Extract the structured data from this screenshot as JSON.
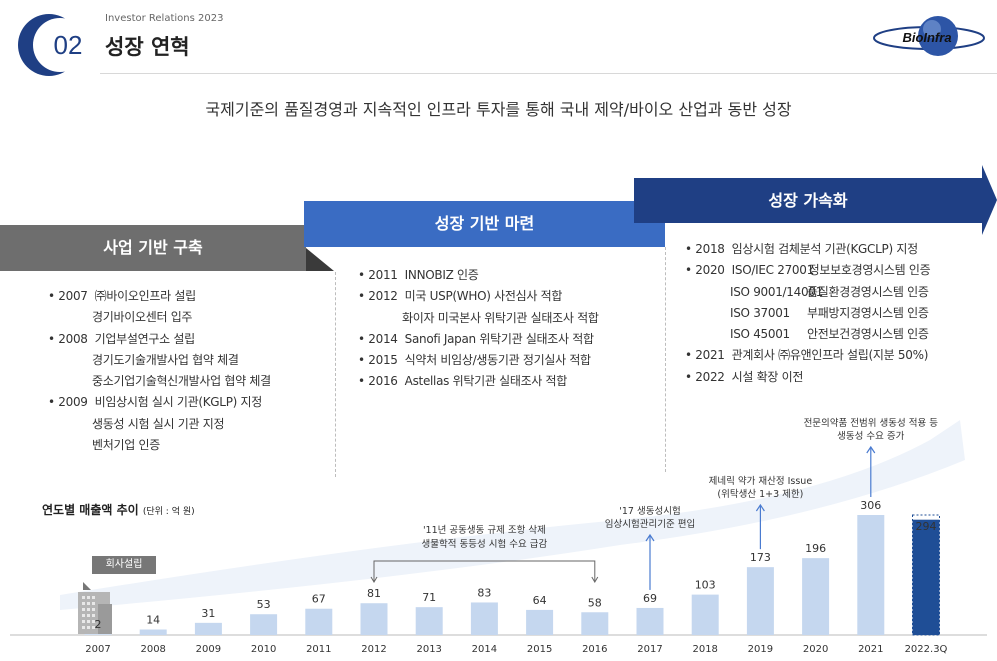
{
  "header": {
    "number": "02",
    "eyebrow": "Investor Relations 2023",
    "title": "성장 연혁",
    "logo": "BioInfra"
  },
  "subtitle": "국제기준의 품질경영과 지속적인 인프라 투자를 통해 국내 제약/바이오 산업과 동반 성장",
  "phases": [
    {
      "title": "사업 기반 구축",
      "items": [
        {
          "year": "• 2007",
          "lines": [
            "㈜바이오인프라 설립",
            "경기바이오센터 입주"
          ]
        },
        {
          "year": "• 2008",
          "lines": [
            "기업부설연구소 설립",
            "경기도기술개발사업 협약 체결",
            "중소기업기술혁신개발사업 협약 체결"
          ]
        },
        {
          "year": "• 2009",
          "lines": [
            "비임상시험 실시 기관(KGLP) 지정",
            "생동성 시험 실시 기관 지정",
            "벤처기업 인증"
          ]
        }
      ]
    },
    {
      "title": "성장 기반 마련",
      "items": [
        {
          "year": "• 2011",
          "lines": [
            "INNOBIZ 인증"
          ]
        },
        {
          "year": "• 2012",
          "lines": [
            "미국 USP(WHO) 사전심사 적합",
            "화이자 미국본사 위탁기관 실태조사 적합"
          ]
        },
        {
          "year": "• 2014",
          "lines": [
            "Sanofi Japan 위탁기관 실태조사 적합"
          ]
        },
        {
          "year": "• 2015",
          "lines": [
            "식약처 비임상/생동기관 정기실사 적합"
          ]
        },
        {
          "year": "• 2016",
          "lines": [
            "Astellas 위탁기관 실태조사 적합"
          ]
        }
      ]
    },
    {
      "title": "성장 가속화",
      "items": [
        {
          "year": "• 2018",
          "lines": [
            "임상시험 검체분석 기관(KGCLP) 지정"
          ]
        },
        {
          "year": "• 2020",
          "iso": [
            {
              "std": "ISO/IEC 27001",
              "desc": "정보보호경영시스템 인증"
            },
            {
              "std": "ISO 9001/14001",
              "desc": "품질환경경영시스템 인증"
            },
            {
              "std": "ISO 37001",
              "desc": "부패방지경영시스템 인증"
            },
            {
              "std": "ISO 45001",
              "desc": "안전보건경영시스템 인증"
            }
          ]
        },
        {
          "year": "• 2021",
          "lines": [
            "관계회사 ㈜유앤인프라 설립(지분 50%)"
          ]
        },
        {
          "year": "• 2022",
          "lines": [
            "시설 확장 이전"
          ]
        }
      ]
    }
  ],
  "chart_data": {
    "type": "bar",
    "title": "연도별 매출액 추이",
    "unit_note": "(단위 : 억 원)",
    "categories": [
      "2007",
      "2008",
      "2009",
      "2010",
      "2011",
      "2012",
      "2013",
      "2014",
      "2015",
      "2016",
      "2017",
      "2018",
      "2019",
      "2020",
      "2021",
      "2022.3Q"
    ],
    "values": [
      2,
      14,
      31,
      53,
      67,
      81,
      71,
      83,
      64,
      58,
      69,
      103,
      173,
      196,
      306,
      294
    ],
    "ylim": [
      0,
      306
    ],
    "highlight_category": "2022.3Q",
    "colors": {
      "bar": "#c5d7ef",
      "highlight": "#1f4e96",
      "trend": "#eef3fa"
    },
    "founded_label": "회사설립",
    "annotations": [
      {
        "text_lines": [
          "'11년 공동생동 규제 조항 삭제",
          "생물학적 동등성 시험 수요 급감"
        ],
        "from": "2012",
        "to": "2016"
      },
      {
        "text_lines": [
          "'17 생동성시험",
          "임상시험관리기준 편입"
        ],
        "at": "2017"
      },
      {
        "text_lines": [
          "제네릭 약가 재산정 Issue",
          "(위탁생산 1+3 제한)"
        ],
        "at": "2019"
      },
      {
        "text_lines": [
          "전문의약품 전범위 생동성 적용 등",
          "생동성 수요 증가"
        ],
        "at": "2021"
      }
    ]
  }
}
